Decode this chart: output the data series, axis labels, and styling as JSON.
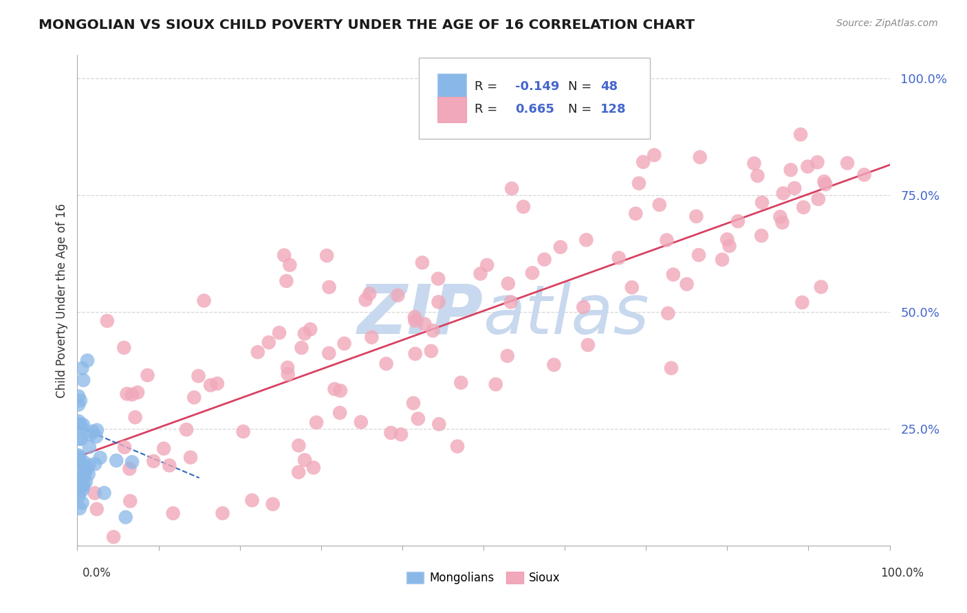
{
  "title": "MONGOLIAN VS SIOUX CHILD POVERTY UNDER THE AGE OF 16 CORRELATION CHART",
  "source": "Source: ZipAtlas.com",
  "ylabel": "Child Poverty Under the Age of 16",
  "mongolian_R": -0.149,
  "mongolian_N": 48,
  "sioux_R": 0.665,
  "sioux_N": 128,
  "mongolian_color": "#89B8E8",
  "sioux_color": "#F0A8BA",
  "mongolian_line_color": "#3366BB",
  "sioux_line_color": "#D84060",
  "watermark_color": "#C8D8EE",
  "background_color": "#FFFFFF",
  "ytick_color": "#4466CC",
  "grid_color": "#CCCCCC",
  "xlim": [
    0.0,
    1.0
  ],
  "ylim": [
    0.0,
    1.05
  ],
  "sioux_trend_x0": 0.0,
  "sioux_trend_y0": 0.19,
  "sioux_trend_x1": 1.0,
  "sioux_trend_y1": 0.815,
  "mong_trend_x0": 0.0,
  "mong_trend_y0": 0.255,
  "mong_trend_x1": 0.15,
  "mong_trend_y1": 0.145
}
